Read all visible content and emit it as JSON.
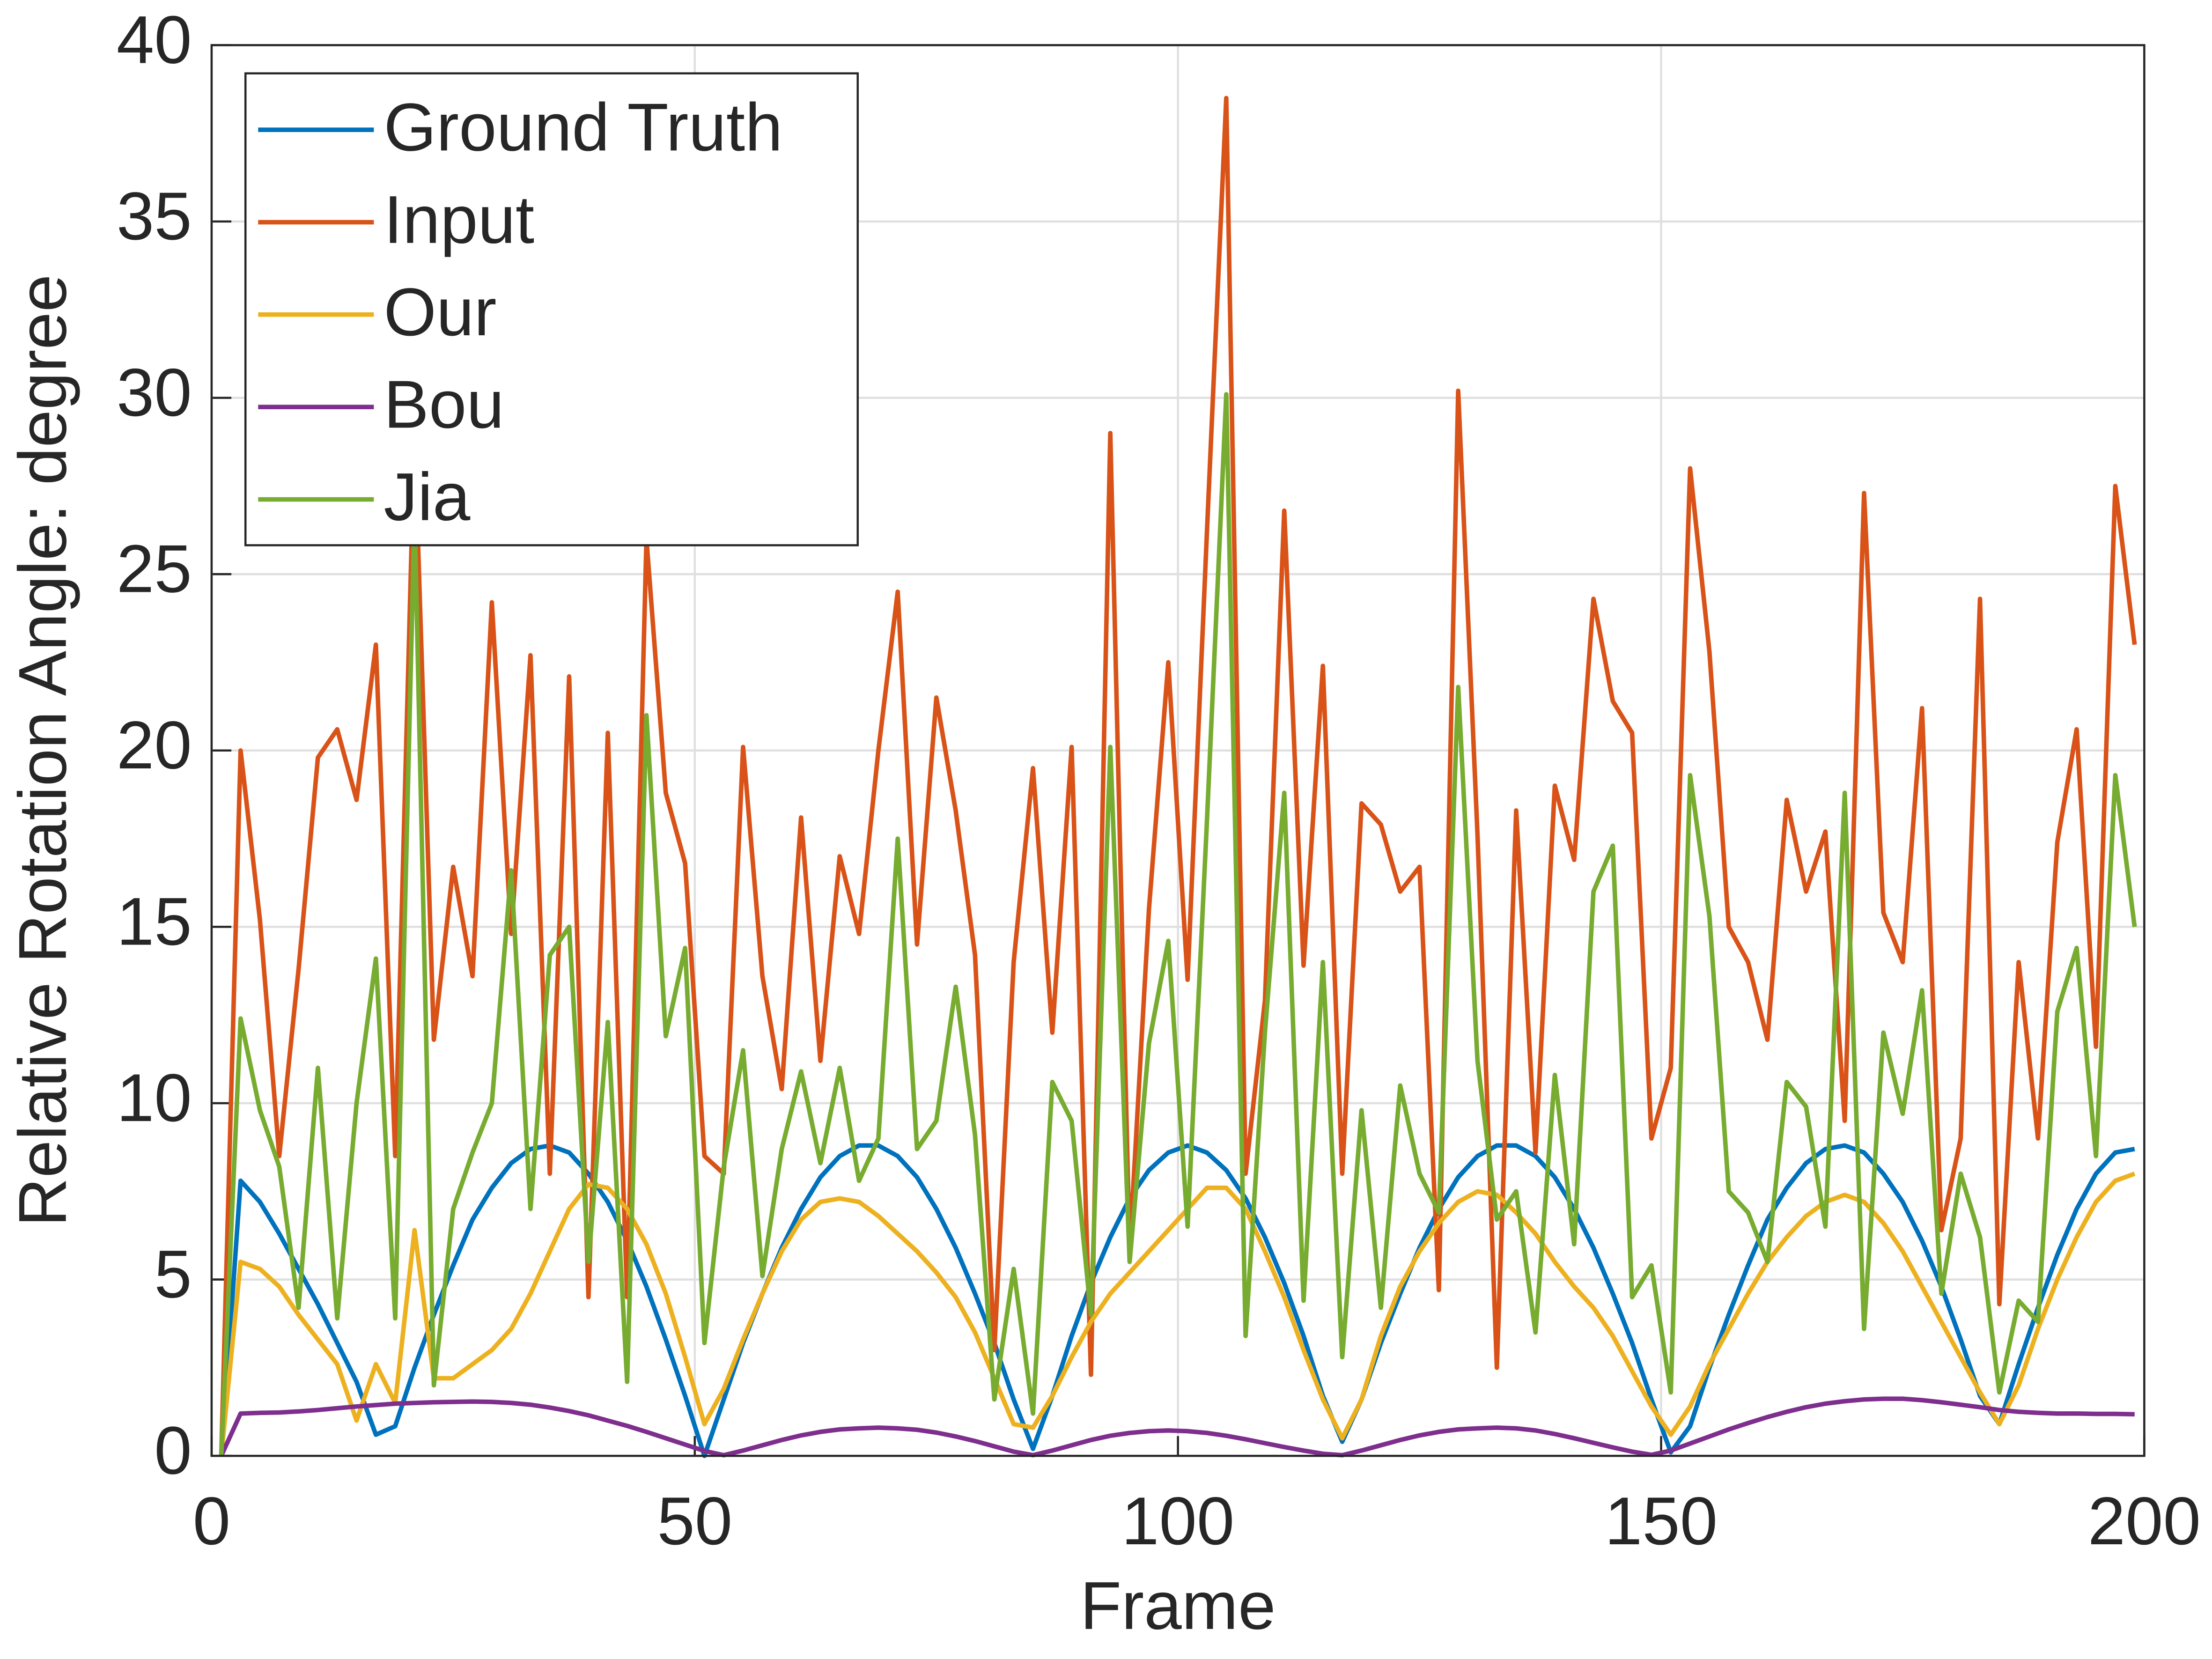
{
  "chart_data": {
    "type": "line",
    "x_label": "Frame",
    "y_label": "Relative Rotation Angle: degree",
    "x": [
      1,
      3,
      5,
      7,
      9,
      11,
      13,
      15,
      17,
      19,
      21,
      23,
      25,
      27,
      29,
      31,
      33,
      35,
      37,
      39,
      41,
      43,
      45,
      47,
      49,
      51,
      53,
      55,
      57,
      59,
      61,
      63,
      65,
      67,
      69,
      71,
      73,
      75,
      77,
      79,
      81,
      83,
      85,
      87,
      89,
      91,
      93,
      95,
      97,
      99,
      101,
      103,
      105,
      107,
      109,
      111,
      113,
      115,
      117,
      119,
      121,
      123,
      125,
      127,
      129,
      131,
      133,
      135,
      137,
      139,
      141,
      143,
      145,
      147,
      149,
      151,
      153,
      155,
      157,
      159,
      161,
      163,
      165,
      167,
      169,
      171,
      173,
      175,
      177,
      179,
      181,
      183,
      185,
      187,
      189,
      191,
      193,
      195,
      197,
      199
    ],
    "series": [
      {
        "name": "Ground Truth",
        "color": "#0072BD",
        "values": [
          0,
          7.8,
          7.2,
          6.3,
          5.3,
          4.3,
          3.2,
          2.1,
          0.6,
          0.84,
          2.5,
          4,
          5.4,
          6.7,
          7.6,
          8.3,
          8.7,
          8.8,
          8.6,
          8,
          7.2,
          6.1,
          4.8,
          3.3,
          1.7,
          0,
          1.6,
          3.2,
          4.6,
          5.9,
          7,
          7.9,
          8.5,
          8.8,
          8.8,
          8.5,
          7.9,
          7,
          5.9,
          4.6,
          3.2,
          1.6,
          0.2,
          1.7,
          3.4,
          4.9,
          6.2,
          7.3,
          8.1,
          8.6,
          8.8,
          8.6,
          8.1,
          7.3,
          6.2,
          4.9,
          3.4,
          1.7,
          0.4,
          1.6,
          3.2,
          4.6,
          5.9,
          7,
          7.9,
          8.5,
          8.8,
          8.8,
          8.5,
          7.9,
          7,
          5.9,
          4.6,
          3.2,
          1.6,
          0.1,
          0.84,
          2.5,
          4,
          5.4,
          6.7,
          7.6,
          8.3,
          8.7,
          8.8,
          8.6,
          8,
          7.2,
          6.1,
          4.8,
          3.3,
          1.7,
          0.9,
          2.6,
          4.2,
          5.7,
          7,
          8,
          8.6,
          8.7
        ]
      },
      {
        "name": "Input",
        "color": "#D95319",
        "values": [
          0,
          20,
          15.2,
          8.5,
          13.8,
          19.8,
          20.6,
          18.6,
          23,
          8.5,
          29,
          11.8,
          16.7,
          13.6,
          24.2,
          14.8,
          22.7,
          8,
          22.1,
          4.5,
          20.5,
          4.5,
          26,
          18.8,
          16.8,
          8.5,
          8,
          20.1,
          13.6,
          10.4,
          18.1,
          11.2,
          17,
          14.8,
          20,
          24.5,
          14.5,
          21.5,
          18.3,
          14.2,
          3,
          14,
          19.5,
          12,
          20.1,
          2.3,
          29,
          5.8,
          15.5,
          22.5,
          13.5,
          26.2,
          38.5,
          8,
          12.9,
          26.8,
          13.9,
          22.4,
          8,
          18.5,
          17.9,
          16,
          16.7,
          4.7,
          30.2,
          17.6,
          2.5,
          18.3,
          8.6,
          19,
          16.9,
          24.3,
          21.4,
          20.5,
          9,
          11,
          28,
          22.8,
          15,
          14,
          11.8,
          18.6,
          16,
          17.7,
          9.5,
          27.3,
          15.4,
          14,
          21.2,
          6.4,
          9,
          24.3,
          4.3,
          14,
          9,
          17.4,
          20.6,
          11.6,
          27.5,
          23
        ]
      },
      {
        "name": "Our",
        "color": "#EDB120",
        "values": [
          0,
          5.5,
          5.3,
          4.8,
          4,
          3.3,
          2.6,
          1,
          2.6,
          1.5,
          6.4,
          2.2,
          2.2,
          2.6,
          3,
          3.6,
          4.6,
          5.8,
          7,
          7.7,
          7.6,
          7,
          6,
          4.6,
          2.8,
          0.9,
          1.9,
          3.3,
          4.6,
          5.8,
          6.7,
          7.2,
          7.3,
          7.2,
          6.8,
          6.3,
          5.8,
          5.2,
          4.5,
          3.5,
          2.2,
          0.9,
          0.8,
          1.7,
          2.8,
          3.8,
          4.6,
          5.2,
          5.8,
          6.4,
          7,
          7.6,
          7.6,
          7,
          5.8,
          4.5,
          3,
          1.6,
          0.5,
          1.6,
          3.4,
          4.8,
          5.8,
          6.6,
          7.2,
          7.5,
          7.4,
          6.9,
          6.3,
          5.5,
          4.8,
          4.2,
          3.4,
          2.4,
          1.4,
          0.6,
          1.4,
          2.6,
          3.6,
          4.6,
          5.5,
          6.2,
          6.8,
          7.2,
          7.4,
          7.2,
          6.6,
          5.8,
          4.8,
          3.8,
          2.8,
          1.8,
          0.9,
          2,
          3.6,
          5,
          6.2,
          7.2,
          7.8,
          8
        ]
      },
      {
        "name": "Bou",
        "color": "#7E2F8E",
        "values": [
          0,
          1.2,
          1.22,
          1.23,
          1.26,
          1.3,
          1.35,
          1.4,
          1.44,
          1.48,
          1.5,
          1.52,
          1.53,
          1.54,
          1.53,
          1.5,
          1.45,
          1.37,
          1.27,
          1.15,
          1,
          0.85,
          0.68,
          0.5,
          0.32,
          0.14,
          0.02,
          0.15,
          0.3,
          0.45,
          0.58,
          0.68,
          0.75,
          0.78,
          0.8,
          0.78,
          0.74,
          0.66,
          0.55,
          0.42,
          0.27,
          0.12,
          0.02,
          0.15,
          0.3,
          0.45,
          0.57,
          0.65,
          0.7,
          0.72,
          0.7,
          0.65,
          0.57,
          0.47,
          0.36,
          0.25,
          0.15,
          0.06,
          0.02,
          0.15,
          0.3,
          0.45,
          0.58,
          0.68,
          0.75,
          0.78,
          0.8,
          0.78,
          0.72,
          0.62,
          0.5,
          0.37,
          0.24,
          0.12,
          0.03,
          0.15,
          0.35,
          0.55,
          0.75,
          0.93,
          1.1,
          1.25,
          1.38,
          1.48,
          1.55,
          1.6,
          1.62,
          1.62,
          1.58,
          1.52,
          1.45,
          1.38,
          1.3,
          1.25,
          1.22,
          1.2,
          1.2,
          1.19,
          1.19,
          1.18
        ]
      },
      {
        "name": "Jia",
        "color": "#77AC30",
        "values": [
          0,
          12.4,
          9.8,
          8.2,
          4.2,
          11,
          3.9,
          10,
          14.1,
          3.9,
          26.8,
          2,
          7,
          8.6,
          10,
          16.6,
          7,
          14.2,
          15,
          5.5,
          12.3,
          2.1,
          21,
          11.9,
          14.4,
          3.2,
          8.2,
          11.5,
          5.1,
          8.7,
          10.9,
          8.3,
          11,
          7.8,
          9,
          17.5,
          8.7,
          9.5,
          13.3,
          9.1,
          1.6,
          5.3,
          1.2,
          10.6,
          9.5,
          4,
          20.1,
          5.5,
          11.7,
          14.6,
          6.5,
          18,
          30.1,
          3.4,
          12,
          18.8,
          4.4,
          14,
          2.8,
          9.8,
          4.2,
          10.5,
          8,
          6.9,
          21.8,
          11.2,
          6.7,
          7.5,
          3.5,
          10.8,
          6,
          16,
          17.3,
          4.5,
          5.4,
          1.8,
          19.3,
          15.3,
          7.5,
          6.9,
          5.5,
          10.6,
          9.9,
          6.5,
          18.8,
          3.6,
          12,
          9.7,
          13.2,
          4.6,
          8,
          6.2,
          1.8,
          4.4,
          3.8,
          12.6,
          14.4,
          8.5,
          19.3,
          15
        ]
      }
    ],
    "xlim": [
      0,
      200
    ],
    "xticks": [
      0,
      50,
      100,
      150,
      200
    ],
    "ylim": [
      0,
      40
    ],
    "yticks": [
      0,
      5,
      10,
      15,
      20,
      25,
      30,
      35,
      40
    ],
    "grid": true,
    "legend": "northwest"
  }
}
